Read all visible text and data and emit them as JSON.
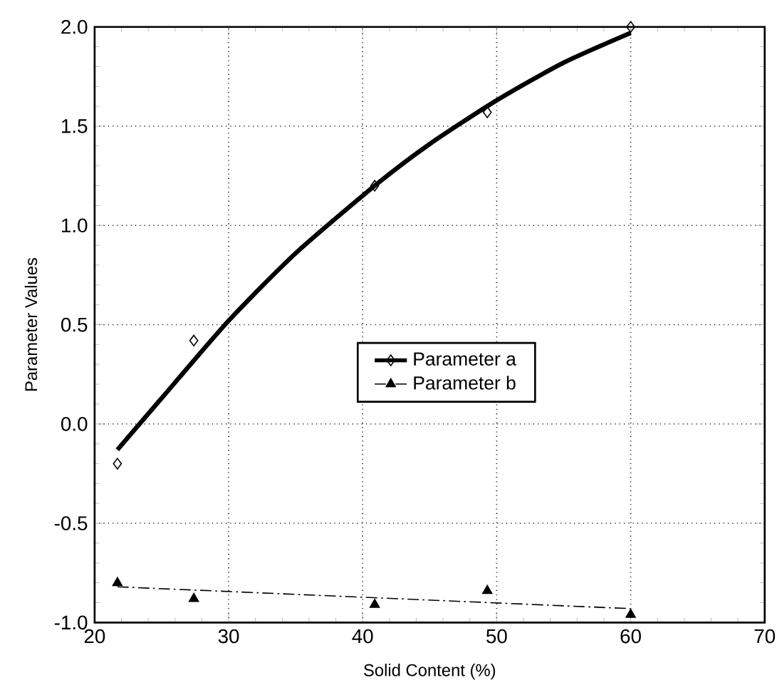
{
  "chart_data": {
    "type": "line",
    "xlabel": "Solid Content (%)",
    "ylabel": "Parameter Values",
    "xlim": [
      20,
      70
    ],
    "xticks": [
      20,
      30,
      40,
      50,
      60,
      70
    ],
    "ylim": [
      -1.0,
      2.0
    ],
    "yticks": [
      {
        "value": -1.0,
        "label": "-1.0"
      },
      {
        "value": -0.5,
        "label": "-0.5"
      },
      {
        "value": 0.0,
        "label": "0.0"
      },
      {
        "value": 0.5,
        "label": "0.5"
      },
      {
        "value": 1.0,
        "label": "1.0"
      },
      {
        "value": 1.5,
        "label": "1.5"
      },
      {
        "value": 2.0,
        "label": "2.0"
      }
    ],
    "grid": true,
    "legend": "center",
    "series": [
      {
        "name": "Parameter a",
        "type": "scatter",
        "marker": "diamond",
        "line_style": "solid",
        "color": "#000000",
        "x": [
          21.7,
          27.4,
          40.9,
          49.3,
          60.0
        ],
        "values": [
          -0.2,
          0.42,
          1.2,
          1.57,
          2.0
        ]
      },
      {
        "line_style": "solid",
        "color": "#000000",
        "x": [
          21.7,
          25,
          30,
          35,
          40.9,
          45,
          50,
          55,
          60
        ],
        "values": [
          -0.13,
          0.13,
          0.52,
          0.86,
          1.2,
          1.41,
          1.63,
          1.82,
          1.97
        ]
      },
      {
        "name": "Parameter b",
        "type": "scatter",
        "marker": "triangle",
        "line_style": "dashed",
        "color": "#000000",
        "x": [
          21.7,
          27.4,
          40.9,
          49.3,
          60.0
        ],
        "values": [
          -0.8,
          -0.88,
          -0.91,
          -0.84,
          -0.96
        ]
      },
      {
        "line_style": "dashed",
        "color": "#000000",
        "x": [
          21.7,
          60.0
        ],
        "values": [
          -0.82,
          -0.93
        ]
      }
    ]
  }
}
